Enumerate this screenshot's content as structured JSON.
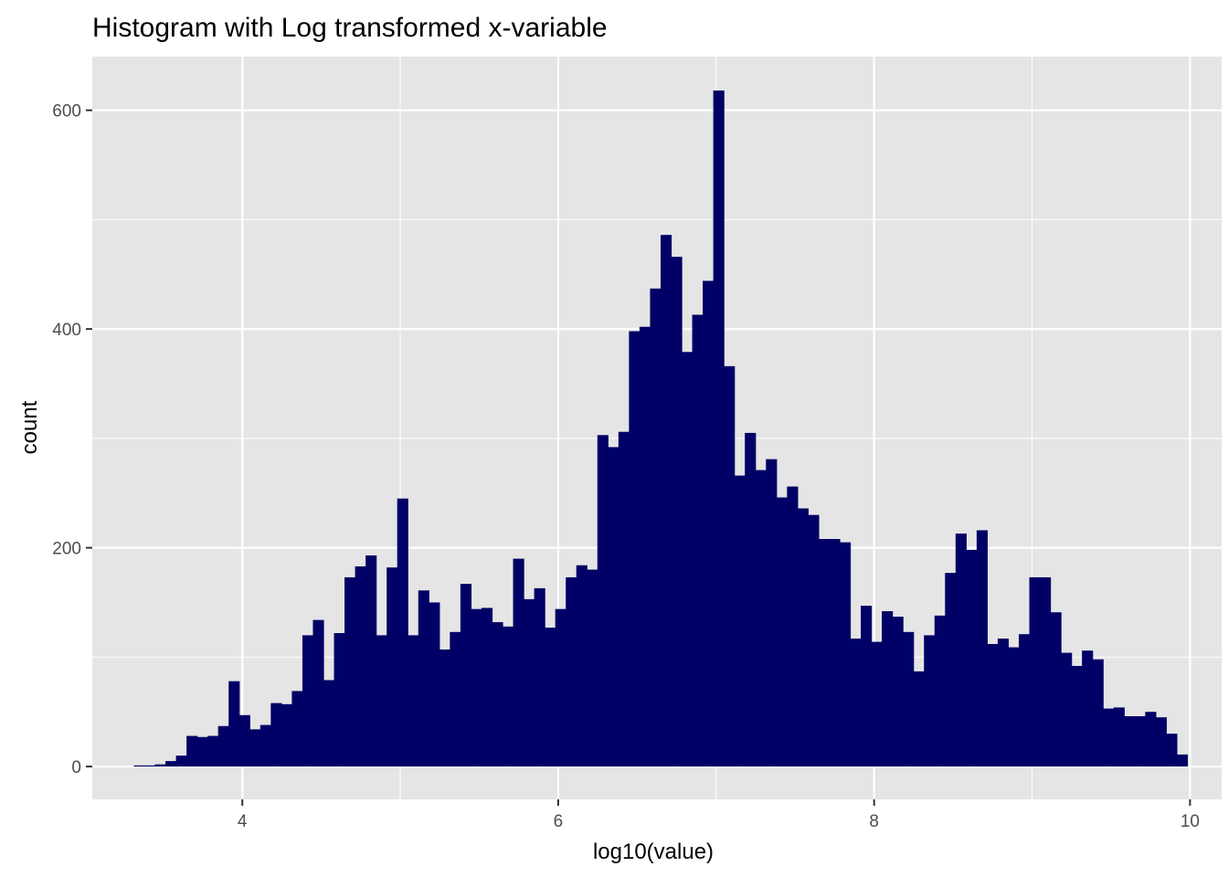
{
  "chart_data": {
    "type": "bar",
    "title": "Histogram with Log transformed x-variable",
    "xlabel": "log10(value)",
    "ylabel": "count",
    "xlim": [
      3.05,
      10.2
    ],
    "ylim": [
      -30,
      649
    ],
    "x_ticks": [
      4,
      6,
      8,
      10
    ],
    "y_ticks": [
      0,
      200,
      400,
      600
    ],
    "grid": true,
    "legend": "none",
    "bar_color": "#000066",
    "panel_background": "#e5e5e5",
    "bin_start": 3.313,
    "bin_width": 0.0667,
    "values": [
      1,
      1,
      2,
      5,
      10,
      28,
      27,
      28,
      37,
      78,
      47,
      34,
      38,
      58,
      57,
      69,
      120,
      134,
      79,
      122,
      173,
      183,
      193,
      120,
      182,
      245,
      120,
      161,
      150,
      107,
      123,
      167,
      144,
      145,
      132,
      128,
      190,
      153,
      163,
      127,
      144,
      173,
      184,
      180,
      303,
      292,
      306,
      398,
      402,
      437,
      486,
      466,
      379,
      413,
      444,
      618,
      366,
      266,
      305,
      271,
      281,
      246,
      256,
      236,
      230,
      208,
      208,
      205,
      117,
      147,
      114,
      142,
      137,
      123,
      87,
      120,
      138,
      177,
      213,
      198,
      216,
      112,
      117,
      109,
      121,
      173,
      173,
      141,
      104,
      92,
      106,
      98,
      53,
      54,
      46,
      46,
      50,
      45,
      30,
      11
    ]
  }
}
